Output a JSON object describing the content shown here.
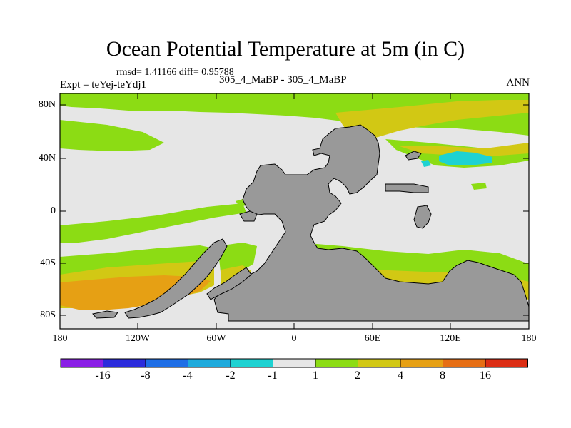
{
  "title": "Ocean Potential Temperature at 5m (in C)",
  "stats": "rmsd= 1.41166 diff= 0.95788",
  "expt": "Expt = teYej-teYdj1",
  "case": "305_4_MaBP - 305_4_MaBP",
  "season": "ANN",
  "lat_labels": [
    "80N",
    "40N",
    "0",
    "40S",
    "80S"
  ],
  "lon_labels": [
    "180",
    "120W",
    "60W",
    "0",
    "60E",
    "120E",
    "180"
  ],
  "colorbar": {
    "labels": [
      "-16",
      "-8",
      "-4",
      "-2",
      "-1",
      "1",
      "2",
      "4",
      "8",
      "16"
    ],
    "colors": [
      "#8a1ee6",
      "#2b2bdc",
      "#1e6ee6",
      "#1eaadc",
      "#1ed2d2",
      "#e6e6e6",
      "#8cdc14",
      "#d2c814",
      "#e6a014",
      "#e66e14",
      "#dc2d14"
    ]
  },
  "colors": {
    "land": "#999999",
    "near_zero": "#e6e6e6",
    "positive_1_2": "#8cdc14",
    "positive_2_4": "#d2c814",
    "positive_4_8": "#e6a014",
    "negative_m1_m2": "#1ed2d2"
  }
}
